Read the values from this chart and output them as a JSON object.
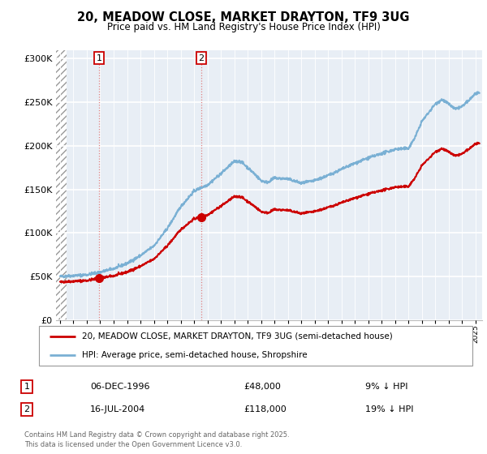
{
  "title": "20, MEADOW CLOSE, MARKET DRAYTON, TF9 3UG",
  "subtitle": "Price paid vs. HM Land Registry's House Price Index (HPI)",
  "legend_label_red": "20, MEADOW CLOSE, MARKET DRAYTON, TF9 3UG (semi-detached house)",
  "legend_label_blue": "HPI: Average price, semi-detached house, Shropshire",
  "annotation1_date": "06-DEC-1996",
  "annotation1_price": "£48,000",
  "annotation1_hpi": "9% ↓ HPI",
  "annotation2_date": "16-JUL-2004",
  "annotation2_price": "£118,000",
  "annotation2_hpi": "19% ↓ HPI",
  "footer": "Contains HM Land Registry data © Crown copyright and database right 2025.\nThis data is licensed under the Open Government Licence v3.0.",
  "ylim": [
    0,
    310000
  ],
  "xlim_start": 1993.7,
  "xlim_end": 2025.5,
  "yticks": [
    0,
    50000,
    100000,
    150000,
    200000,
    250000,
    300000
  ],
  "ytick_labels": [
    "£0",
    "£50K",
    "£100K",
    "£150K",
    "£200K",
    "£250K",
    "£300K"
  ],
  "sale1_x": 1996.92,
  "sale1_y": 48000,
  "sale2_x": 2004.54,
  "sale2_y": 118000,
  "red_color": "#cc0000",
  "blue_color": "#7ab0d4",
  "background_color": "#e8eef5",
  "hatch_end": 1994.5
}
